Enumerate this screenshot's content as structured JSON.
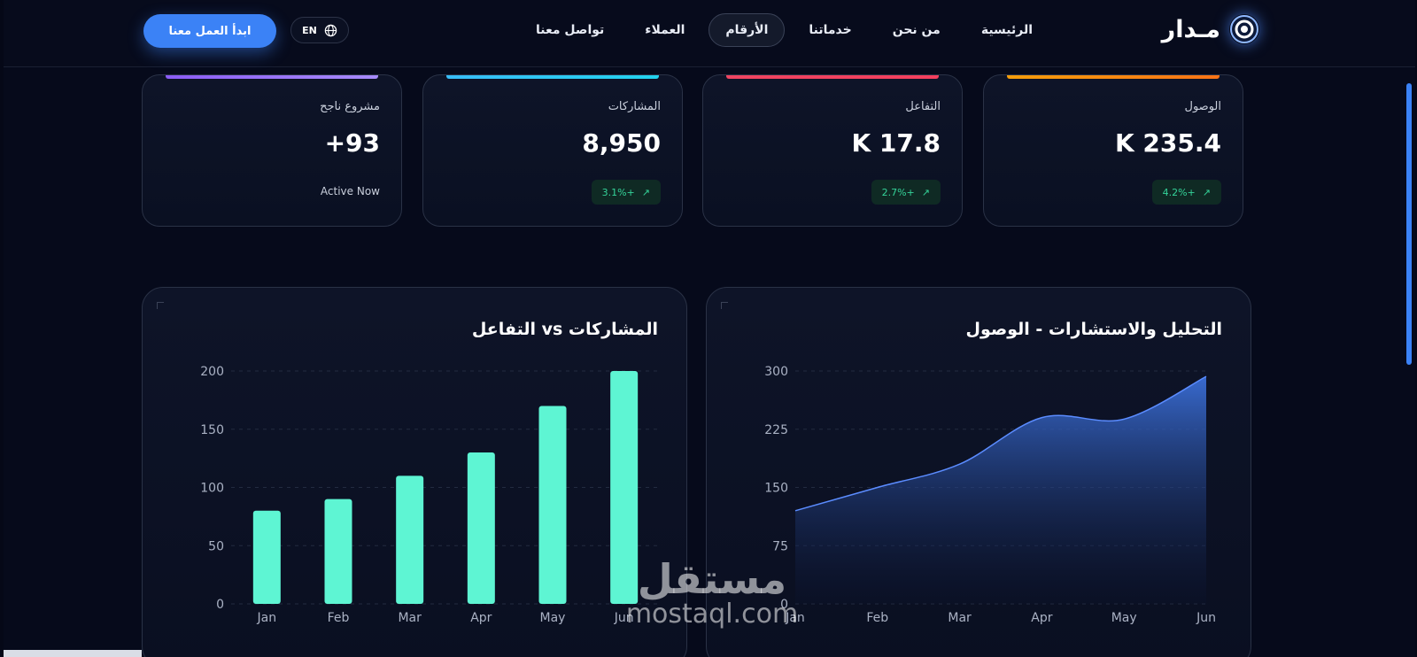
{
  "brand": {
    "name": "مـدار"
  },
  "nav": {
    "items": [
      {
        "label": "الرئيسية",
        "active": false
      },
      {
        "label": "من نحن",
        "active": false
      },
      {
        "label": "خدماتنا",
        "active": false
      },
      {
        "label": "الأرقام",
        "active": true
      },
      {
        "label": "العملاء",
        "active": false
      },
      {
        "label": "تواصل معنا",
        "active": false
      }
    ],
    "lang_label": "EN",
    "cta_label": "ابدأ العمل معنا"
  },
  "stats": [
    {
      "label": "الوصول",
      "value": "K 235.4",
      "badge": "4.2%+",
      "accent": "#f59e0b"
    },
    {
      "label": "التفاعل",
      "value": "K 17.8",
      "badge": "2.7%+",
      "accent": "#ef4461"
    },
    {
      "label": "المشاركات",
      "value": "8,950",
      "badge": "3.1%+",
      "accent": "#38bdf8"
    },
    {
      "label": "مشروع ناجح",
      "value": "+93",
      "sub": "Active Now",
      "accent": "#8b5cf6"
    }
  ],
  "chart_data": [
    {
      "type": "area",
      "title": "التحليل والاستشارات - الوصول",
      "x": [
        "Jan",
        "Feb",
        "Mar",
        "Apr",
        "May",
        "Jun"
      ],
      "values": [
        120,
        150,
        180,
        240,
        238,
        293
      ],
      "yticks": [
        0,
        75,
        150,
        225,
        300
      ],
      "ylim": [
        0,
        300
      ],
      "color": "#3b6fd8"
    },
    {
      "type": "bar",
      "title": "التفاعل vs المشاركات",
      "categories": [
        "Jan",
        "Feb",
        "Mar",
        "Apr",
        "May",
        "Jun"
      ],
      "values": [
        80,
        90,
        110,
        130,
        170,
        200
      ],
      "yticks": [
        0,
        50,
        100,
        150,
        200
      ],
      "ylim": [
        0,
        200
      ],
      "color": "#5ef5d3"
    }
  ],
  "watermark": {
    "arabic": "مستقل",
    "latin": "mostaql.com"
  }
}
